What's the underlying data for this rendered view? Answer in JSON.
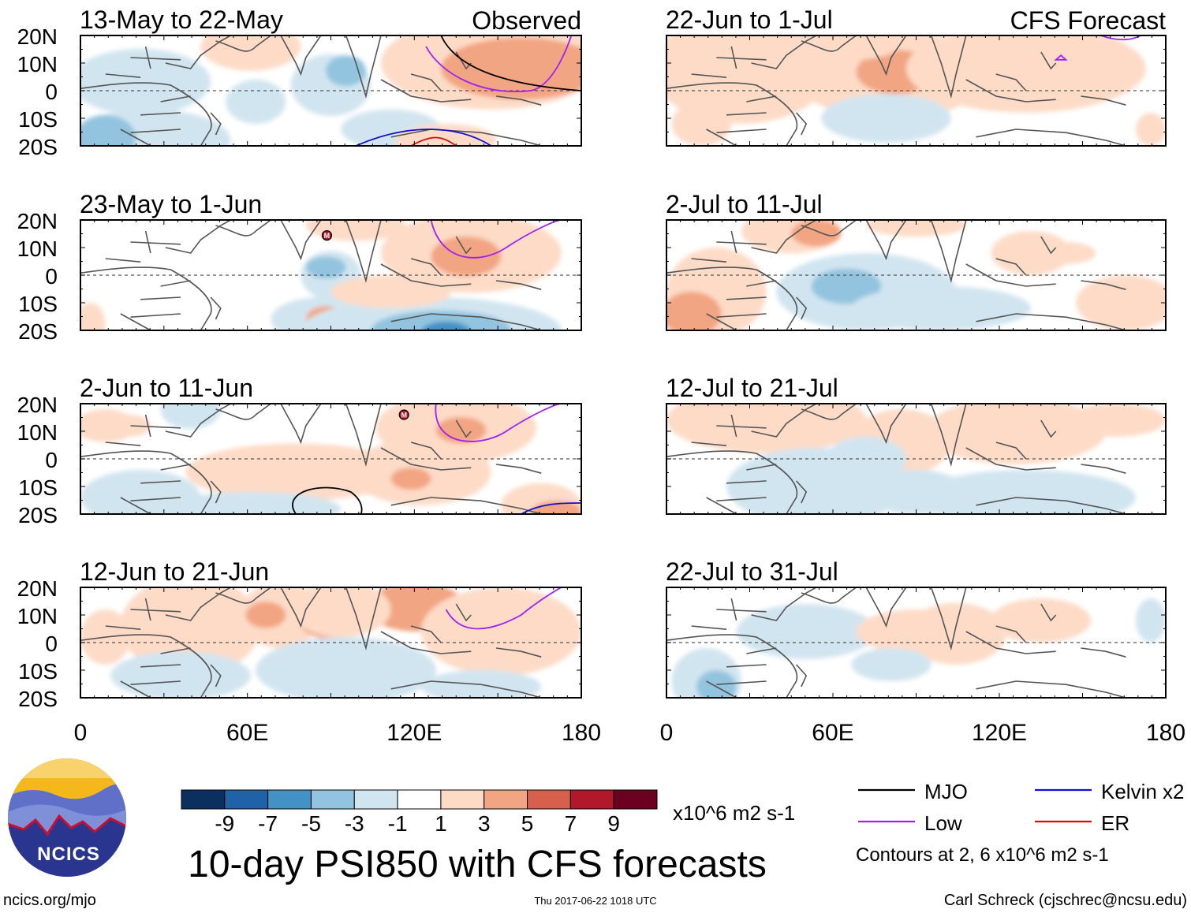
{
  "chart_data": {
    "type": "heatmap",
    "title": "10-day PSI850 with CFS forecasts",
    "variable": "PSI850",
    "units": "x10^6 m2 s-1",
    "columns": [
      {
        "heading": "Observed",
        "panels": [
          "13-May to 22-May",
          "23-May to 1-Jun",
          "2-Jun to 11-Jun",
          "12-Jun to 21-Jun"
        ]
      },
      {
        "heading": "CFS Forecast",
        "panels": [
          "22-Jun to 1-Jul",
          "2-Jul to 11-Jul",
          "12-Jul to 21-Jul",
          "22-Jul to 31-Jul"
        ]
      }
    ],
    "x_axis": {
      "range": [
        0,
        180
      ],
      "ticks": [
        "0",
        "60E",
        "120E",
        "180"
      ]
    },
    "y_axis": {
      "range": [
        -20,
        20
      ],
      "ticks": [
        "20N",
        "10N",
        "0",
        "10S",
        "20S"
      ]
    },
    "colorbar": {
      "ticks": [
        "-9",
        "-7",
        "-5",
        "-3",
        "-1",
        "1",
        "3",
        "5",
        "7",
        "9"
      ],
      "colors": [
        "#0b2f5e",
        "#1f62a8",
        "#4392c5",
        "#93c4df",
        "#d1e5f0",
        "#ffffff",
        "#fddbc7",
        "#f2a582",
        "#d7604d",
        "#b2182b",
        "#6b0020"
      ]
    },
    "legend": [
      {
        "label": "MJO",
        "color": "#000000"
      },
      {
        "label": "Kelvin x2",
        "color": "#1010d0"
      },
      {
        "label": "Low",
        "color": "#a020f0"
      },
      {
        "label": "ER",
        "color": "#d01010"
      }
    ],
    "contour_note": "Contours at 2, 6 x10^6 m2 s-1",
    "storm_marker": "M"
  },
  "logo": {
    "text": "NCICS"
  },
  "footer": {
    "url": "ncics.org/mjo",
    "timestamp": "Thu 2017-06-22 1018 UTC",
    "credit": "Carl Schreck (cjschrec@ncsu.edu)"
  }
}
